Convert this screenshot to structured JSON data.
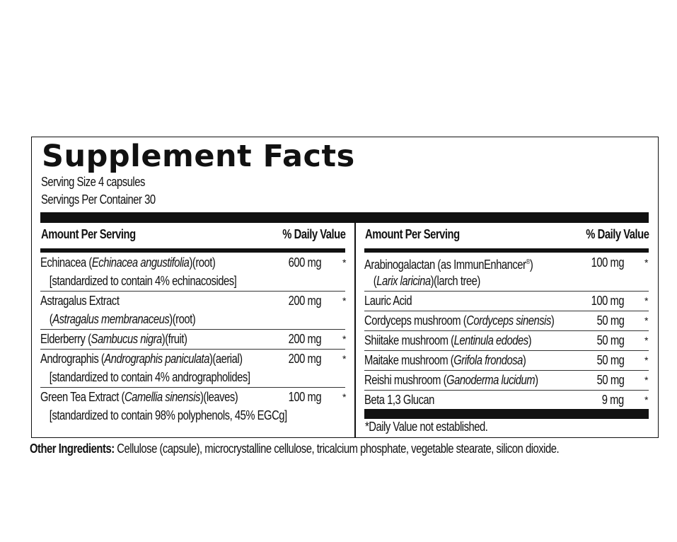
{
  "title": "Supplement Facts",
  "serving_size": "Serving Size 4 capsules",
  "servings_per_container": "Servings Per Container 30",
  "columns": [
    {
      "header_amount": "Amount Per Serving",
      "header_dv": "% Daily Value",
      "rows": [
        {
          "name": [
            {
              "t": "Echinacea ("
            },
            {
              "t": "Echinacea angustifolia",
              "i": true
            },
            {
              "t": ")(root)"
            }
          ],
          "sub": [
            {
              "t": "[standardized to contain 4% echinacosides]"
            }
          ],
          "amount": "600 mg",
          "dv": "*"
        },
        {
          "name": [
            {
              "t": "Astragalus Extract"
            }
          ],
          "sub": [
            {
              "t": "("
            },
            {
              "t": "Astragalus membranaceus",
              "i": true
            },
            {
              "t": ")(root)"
            }
          ],
          "amount": "200 mg",
          "dv": "*"
        },
        {
          "name": [
            {
              "t": "Elderberry ("
            },
            {
              "t": "Sambucus nigra",
              "i": true
            },
            {
              "t": ")(fruit)"
            }
          ],
          "amount": "200 mg",
          "dv": "*"
        },
        {
          "name": [
            {
              "t": "Andrographis ("
            },
            {
              "t": "Andrographis paniculata",
              "i": true
            },
            {
              "t": ")(aerial)"
            }
          ],
          "sub": [
            {
              "t": "[standardized to contain 4% andrographolides]"
            }
          ],
          "amount": "200 mg",
          "dv": "*"
        },
        {
          "name": [
            {
              "t": "Green Tea Extract ("
            },
            {
              "t": "Camellia sinensis",
              "i": true
            },
            {
              "t": ")(leaves)"
            }
          ],
          "sub": [
            {
              "t": "[standardized to contain 98% polyphenols, 45% EGCg]"
            }
          ],
          "amount": "100 mg",
          "dv": "*"
        }
      ]
    },
    {
      "header_amount": "Amount Per Serving",
      "header_dv": "% Daily Value",
      "rows": [
        {
          "name": [
            {
              "t": "Arabinogalactan (as ImmunEnhancer"
            },
            {
              "t": "®",
              "sup": true
            },
            {
              "t": ")"
            }
          ],
          "sub": [
            {
              "t": "("
            },
            {
              "t": "Larix laricina",
              "i": true
            },
            {
              "t": ")(larch tree)"
            }
          ],
          "amount": "100 mg",
          "dv": "*"
        },
        {
          "name": [
            {
              "t": "Lauric Acid"
            }
          ],
          "amount": "100 mg",
          "dv": "*"
        },
        {
          "name": [
            {
              "t": "Cordyceps mushroom ("
            },
            {
              "t": "Cordyceps sinensis",
              "i": true
            },
            {
              "t": ")"
            }
          ],
          "amount": "50 mg",
          "dv": "*"
        },
        {
          "name": [
            {
              "t": "Shiitake mushroom ("
            },
            {
              "t": "Lentinula edodes",
              "i": true
            },
            {
              "t": ")"
            }
          ],
          "amount": "50 mg",
          "dv": "*"
        },
        {
          "name": [
            {
              "t": "Maitake mushroom ("
            },
            {
              "t": "Grifola frondosa",
              "i": true
            },
            {
              "t": ")"
            }
          ],
          "amount": "50 mg",
          "dv": "*"
        },
        {
          "name": [
            {
              "t": "Reishi mushroom ("
            },
            {
              "t": "Ganoderma lucidum",
              "i": true
            },
            {
              "t": ")"
            }
          ],
          "amount": "50 mg",
          "dv": "*"
        },
        {
          "name": [
            {
              "t": "Beta 1,3 Glucan"
            }
          ],
          "amount": "9 mg",
          "dv": "*"
        }
      ]
    }
  ],
  "footnote": "*Daily Value not established.",
  "other_ingredients": {
    "label": "Other Ingredients:",
    "text": " Cellulose (capsule), microcrystalline cellulose, tricalcium phosphate, vegetable stearate, silicon dioxide."
  }
}
